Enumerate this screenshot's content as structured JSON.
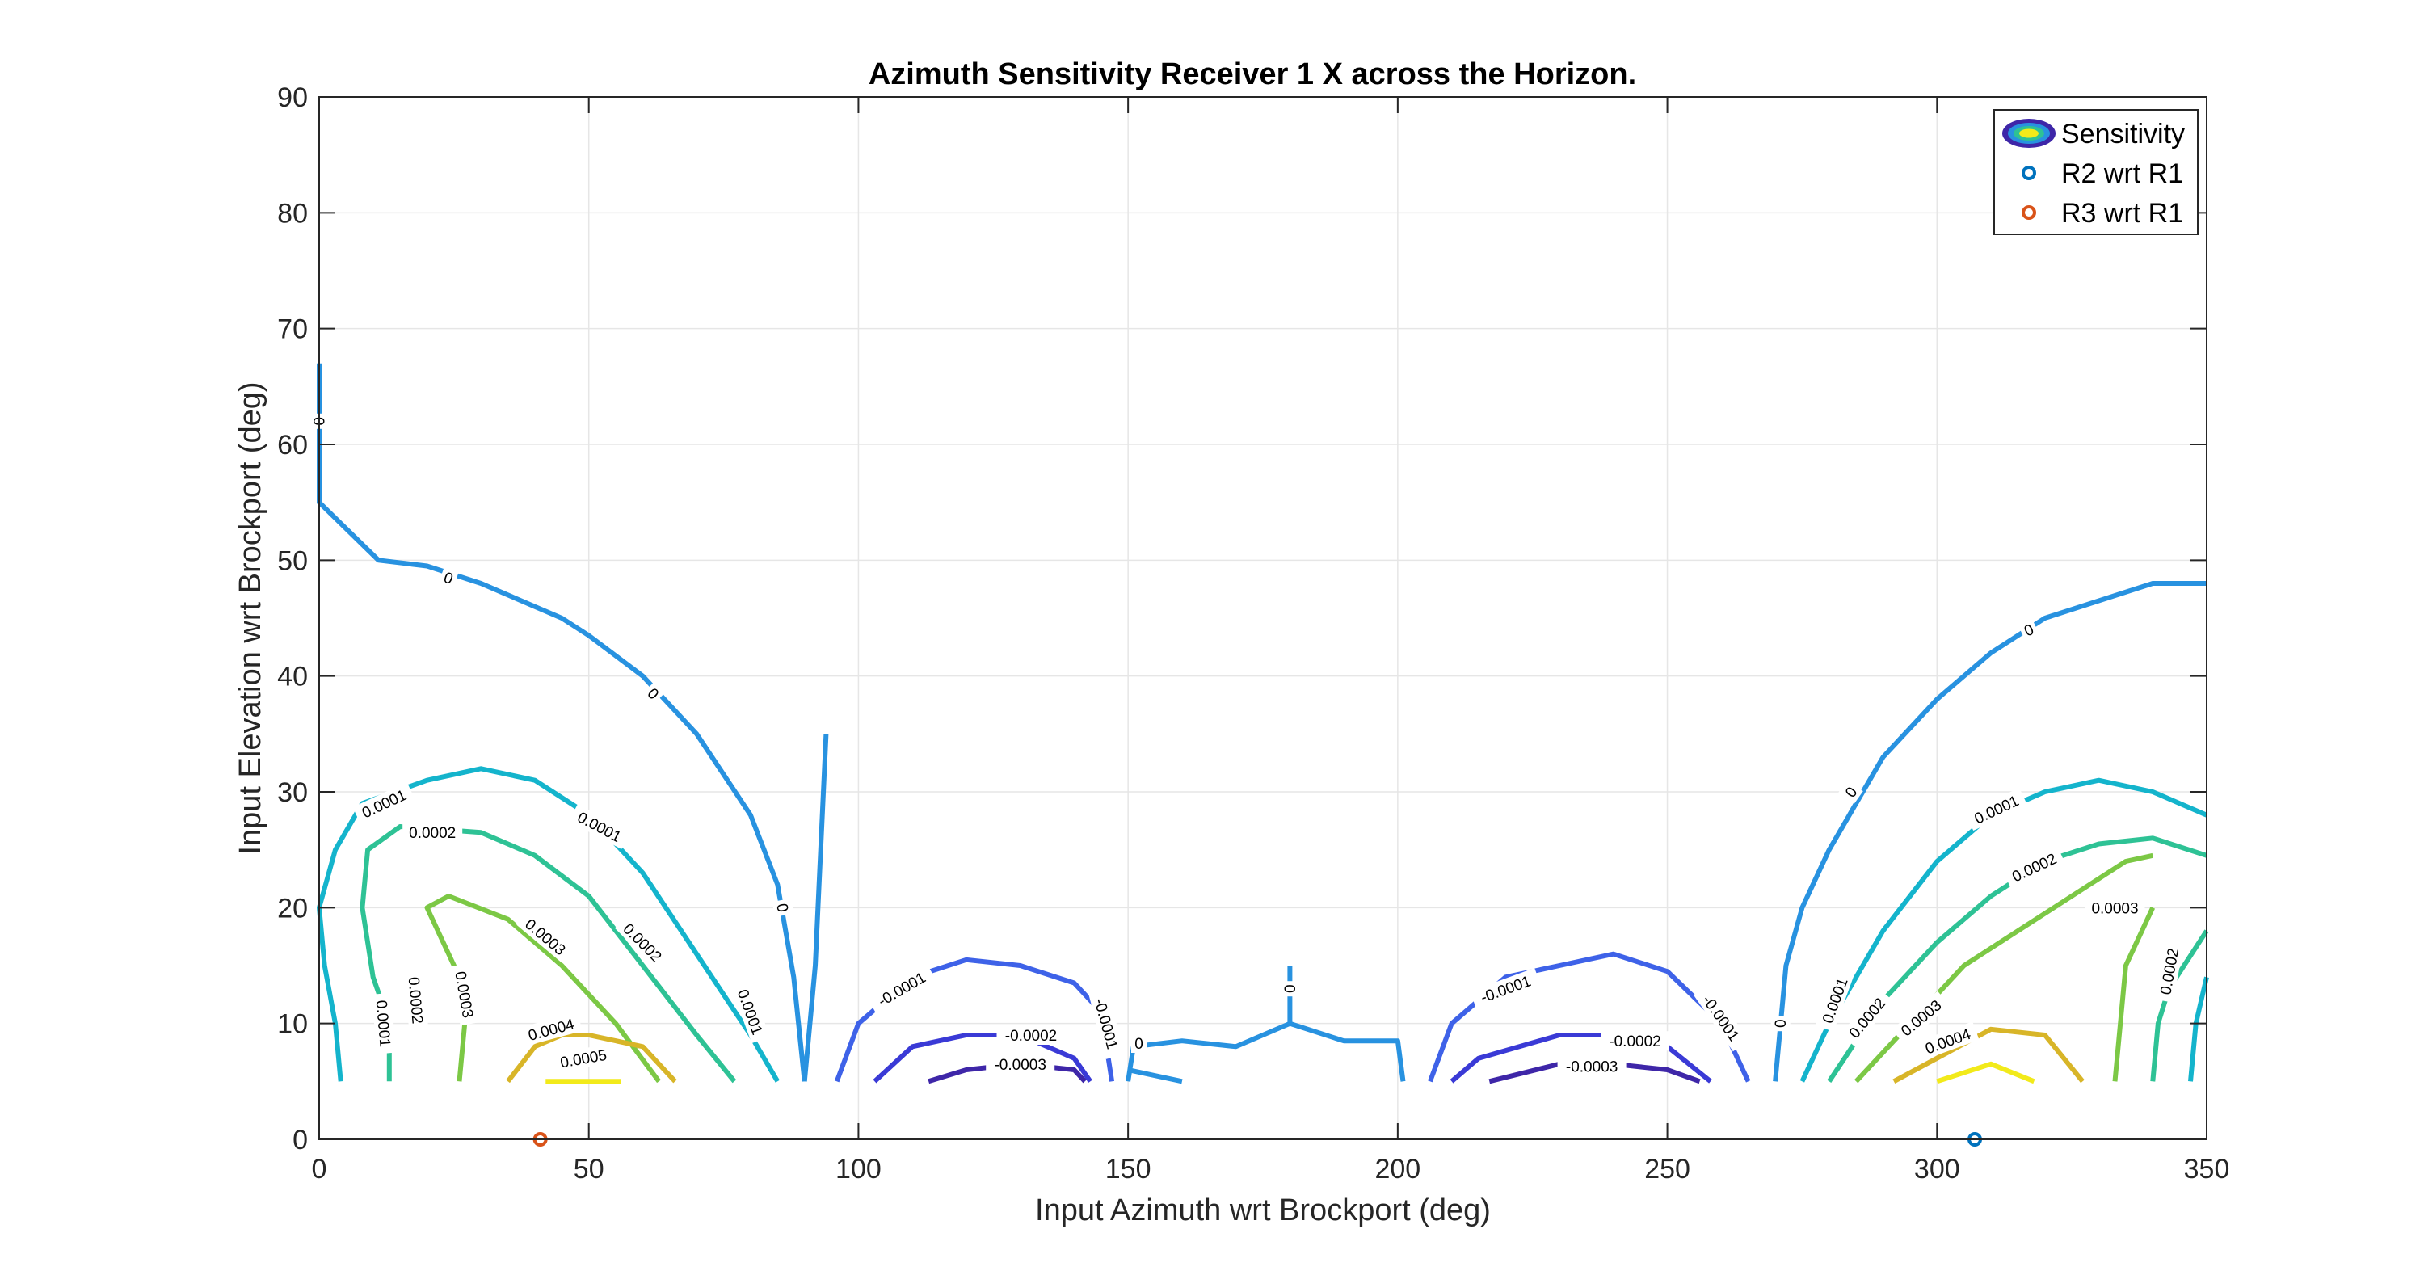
{
  "chart_data": {
    "type": "contour",
    "title": "Azimuth Sensitivity Receiver 1 X across the Horizon.",
    "xlabel": "Input Azimuth wrt Brockport (deg)",
    "ylabel": "Input Elevation wrt Brockport (deg)",
    "xlim": [
      0,
      350
    ],
    "ylim": [
      0,
      90
    ],
    "xticks": [
      0,
      50,
      100,
      150,
      200,
      250,
      300,
      350
    ],
    "yticks": [
      0,
      10,
      20,
      30,
      40,
      50,
      60,
      70,
      80,
      90
    ],
    "grid": true,
    "legend": {
      "position": "top-right",
      "entries": [
        "Sensitivity",
        "R2 wrt R1",
        "R3 wrt R1"
      ]
    },
    "colors": {
      "n0003": "#3e26a8",
      "n0002": "#3a3ad6",
      "n0001": "#3e62e8",
      "z0": "#2892e0",
      "p0001": "#14b4cc",
      "p0002": "#2ec295",
      "p0003": "#7cc845",
      "p0004": "#d8b528",
      "p0005": "#f2ea1a",
      "r2": "#0072bd",
      "r3": "#d95319"
    },
    "contours": [
      {
        "level": 0,
        "color_key": "z0",
        "points": [
          [
            0,
            67
          ],
          [
            0,
            55
          ],
          [
            11,
            50
          ],
          [
            20,
            49.5
          ],
          [
            30,
            48
          ],
          [
            40,
            46
          ],
          [
            45,
            45
          ],
          [
            50,
            43.5
          ],
          [
            60,
            40
          ],
          [
            70,
            35
          ],
          [
            80,
            28
          ],
          [
            85,
            22
          ],
          [
            88,
            14
          ],
          [
            90,
            5
          ]
        ]
      },
      {
        "level": 0.0001,
        "color_key": "p0001",
        "points": [
          [
            4,
            5
          ],
          [
            3,
            10
          ],
          [
            1,
            15
          ],
          [
            0,
            20
          ],
          [
            3,
            25
          ],
          [
            8,
            29
          ],
          [
            20,
            31
          ],
          [
            30,
            32
          ],
          [
            40,
            31
          ],
          [
            50,
            28
          ],
          [
            60,
            23
          ],
          [
            70,
            16
          ],
          [
            80,
            9
          ],
          [
            85,
            5
          ]
        ]
      },
      {
        "level": 0.0002,
        "color_key": "p0002",
        "points": [
          [
            13,
            5
          ],
          [
            13,
            10
          ],
          [
            10,
            14
          ],
          [
            8,
            20
          ],
          [
            9,
            25
          ],
          [
            15,
            27
          ],
          [
            30,
            26.5
          ],
          [
            40,
            24.5
          ],
          [
            50,
            21
          ],
          [
            60,
            15
          ],
          [
            70,
            9
          ],
          [
            77,
            5
          ]
        ]
      },
      {
        "level": 0.0003,
        "color_key": "p0003",
        "points": [
          [
            26,
            5
          ],
          [
            27,
            10
          ],
          [
            25,
            15
          ],
          [
            20,
            20
          ],
          [
            24,
            21
          ],
          [
            35,
            19
          ],
          [
            45,
            15
          ],
          [
            55,
            10
          ],
          [
            63,
            5
          ]
        ]
      },
      {
        "level": 0.0004,
        "color_key": "p0004",
        "points": [
          [
            35,
            5
          ],
          [
            40,
            8
          ],
          [
            45,
            9
          ],
          [
            50,
            9
          ],
          [
            60,
            8
          ],
          [
            66,
            5
          ]
        ]
      },
      {
        "level": 0.0005,
        "color_key": "p0005",
        "points": [
          [
            42,
            5
          ],
          [
            50,
            5
          ],
          [
            56,
            5
          ]
        ]
      },
      {
        "level": 0,
        "color_key": "z0",
        "points": [
          [
            90,
            5
          ],
          [
            91,
            10
          ],
          [
            92,
            15
          ],
          [
            93,
            25
          ],
          [
            94,
            35
          ]
        ]
      },
      {
        "level": -0.0001,
        "color_key": "n0001",
        "points": [
          [
            96,
            5
          ],
          [
            100,
            10
          ],
          [
            110,
            14
          ],
          [
            120,
            15.5
          ],
          [
            130,
            15
          ],
          [
            140,
            13.5
          ],
          [
            145,
            11
          ],
          [
            147,
            5
          ]
        ]
      },
      {
        "level": -0.0002,
        "color_key": "n0002",
        "points": [
          [
            103,
            5
          ],
          [
            110,
            8
          ],
          [
            120,
            9
          ],
          [
            130,
            9
          ],
          [
            140,
            7
          ],
          [
            143,
            5
          ]
        ]
      },
      {
        "level": -0.0003,
        "color_key": "n0003",
        "points": [
          [
            113,
            5
          ],
          [
            120,
            6
          ],
          [
            130,
            6.5
          ],
          [
            140,
            6
          ],
          [
            142,
            5
          ]
        ]
      },
      {
        "level": 0,
        "color_key": "z0",
        "points": [
          [
            150,
            5
          ],
          [
            151,
            8
          ],
          [
            160,
            8.5
          ],
          [
            170,
            8
          ],
          [
            180,
            10
          ],
          [
            190,
            8.5
          ],
          [
            200,
            8.5
          ],
          [
            201,
            5
          ]
        ]
      },
      {
        "level": 0,
        "color_key": "z0",
        "points": [
          [
            180,
            10
          ],
          [
            180,
            15
          ]
        ]
      },
      {
        "level": 0,
        "color_key": "z0",
        "points": [
          [
            150,
            6
          ],
          [
            155,
            5.5
          ],
          [
            160,
            5
          ]
        ]
      },
      {
        "level": -0.0001,
        "color_key": "n0001",
        "points": [
          [
            206,
            5
          ],
          [
            210,
            10
          ],
          [
            220,
            14
          ],
          [
            230,
            15
          ],
          [
            240,
            16
          ],
          [
            250,
            14.5
          ],
          [
            260,
            10
          ],
          [
            265,
            5
          ]
        ]
      },
      {
        "level": -0.0002,
        "color_key": "n0002",
        "points": [
          [
            210,
            5
          ],
          [
            215,
            7
          ],
          [
            230,
            9
          ],
          [
            240,
            9
          ],
          [
            250,
            8
          ],
          [
            258,
            5
          ]
        ]
      },
      {
        "level": -0.0003,
        "color_key": "n0003",
        "points": [
          [
            217,
            5
          ],
          [
            230,
            6.5
          ],
          [
            240,
            6.5
          ],
          [
            250,
            6
          ],
          [
            256,
            5
          ]
        ]
      },
      {
        "level": 0,
        "color_key": "z0",
        "points": [
          [
            270,
            5
          ],
          [
            272,
            15
          ],
          [
            275,
            20
          ],
          [
            280,
            25
          ],
          [
            290,
            33
          ],
          [
            300,
            38
          ],
          [
            310,
            42
          ],
          [
            320,
            45
          ],
          [
            330,
            46.5
          ],
          [
            340,
            48
          ],
          [
            350,
            48
          ]
        ]
      },
      {
        "level": 0.0001,
        "color_key": "p0001",
        "points": [
          [
            275,
            5
          ],
          [
            280,
            10
          ],
          [
            290,
            18
          ],
          [
            300,
            24
          ],
          [
            310,
            28
          ],
          [
            320,
            30
          ],
          [
            330,
            31
          ],
          [
            340,
            30
          ],
          [
            350,
            28
          ]
        ]
      },
      {
        "level": 0.0002,
        "color_key": "p0002",
        "points": [
          [
            280,
            5
          ],
          [
            290,
            12
          ],
          [
            300,
            17
          ],
          [
            310,
            21
          ],
          [
            320,
            24
          ],
          [
            330,
            25.5
          ],
          [
            340,
            26
          ],
          [
            350,
            24.5
          ]
        ]
      },
      {
        "level": 0.0003,
        "color_key": "p0003",
        "points": [
          [
            285,
            5
          ],
          [
            295,
            10
          ],
          [
            305,
            15
          ],
          [
            315,
            18
          ],
          [
            325,
            21
          ],
          [
            335,
            24
          ],
          [
            340,
            24.5
          ]
        ]
      },
      {
        "level": 0.0004,
        "color_key": "p0004",
        "points": [
          [
            292,
            5
          ],
          [
            300,
            7
          ],
          [
            310,
            9.5
          ],
          [
            320,
            9
          ],
          [
            327,
            5
          ]
        ]
      },
      {
        "level": 0.0005,
        "color_key": "p0005",
        "points": [
          [
            300,
            5
          ],
          [
            310,
            6.5
          ],
          [
            318,
            5
          ]
        ]
      },
      {
        "level": 0.0003,
        "color_key": "p0003",
        "points": [
          [
            333,
            5
          ],
          [
            335,
            15
          ],
          [
            340,
            20
          ]
        ]
      },
      {
        "level": 0.0002,
        "color_key": "p0002",
        "points": [
          [
            340,
            5
          ],
          [
            341,
            10
          ],
          [
            343,
            13
          ],
          [
            350,
            18
          ]
        ]
      },
      {
        "level": 0.0001,
        "color_key": "p0001",
        "points": [
          [
            347,
            5
          ],
          [
            348,
            10
          ],
          [
            349,
            12
          ],
          [
            350,
            14
          ]
        ]
      }
    ],
    "contour_labels": [
      {
        "text": "0",
        "x": 0,
        "y": 62,
        "rot": 90,
        "color_key": "z0"
      },
      {
        "text": "0",
        "x": 24,
        "y": 48.5,
        "rot": 20,
        "color_key": "z0"
      },
      {
        "text": "0",
        "x": 62,
        "y": 38.5,
        "rot": 45,
        "color_key": "z0"
      },
      {
        "text": "0",
        "x": 86,
        "y": 20,
        "rot": 80,
        "color_key": "z0"
      },
      {
        "text": "0.0001",
        "x": 12,
        "y": 29,
        "rot": -25,
        "color_key": "p0001"
      },
      {
        "text": "0.0001",
        "x": 52,
        "y": 27,
        "rot": 28,
        "color_key": "p0001"
      },
      {
        "text": "0.0001",
        "x": 80,
        "y": 11,
        "rot": 70,
        "color_key": "p0001"
      },
      {
        "text": "0.0001",
        "x": 12,
        "y": 10,
        "rot": 85,
        "color_key": "p0001"
      },
      {
        "text": "0.0002",
        "x": 21,
        "y": 26.5,
        "rot": 0,
        "color_key": "p0002"
      },
      {
        "text": "0.0002",
        "x": 60,
        "y": 17,
        "rot": 45,
        "color_key": "p0002"
      },
      {
        "text": "0.0002",
        "x": 18,
        "y": 12,
        "rot": 85,
        "color_key": "p0002"
      },
      {
        "text": "0.0003",
        "x": 42,
        "y": 17.5,
        "rot": 40,
        "color_key": "p0003"
      },
      {
        "text": "0.0003",
        "x": 27,
        "y": 12.5,
        "rot": 80,
        "color_key": "p0003"
      },
      {
        "text": "0.0004",
        "x": 43,
        "y": 9.5,
        "rot": -15,
        "color_key": "p0004"
      },
      {
        "text": "0.0005",
        "x": 49,
        "y": 7,
        "rot": -10,
        "color_key": "p0005"
      },
      {
        "text": "-0.0001",
        "x": 108,
        "y": 13,
        "rot": -30,
        "color_key": "n0001"
      },
      {
        "text": "-0.0002",
        "x": 132,
        "y": 9,
        "rot": 0,
        "color_key": "n0002"
      },
      {
        "text": "-0.0003",
        "x": 130,
        "y": 6.5,
        "rot": 0,
        "color_key": "n0003"
      },
      {
        "text": "-0.0001",
        "x": 146,
        "y": 10,
        "rot": 75,
        "color_key": "n0001"
      },
      {
        "text": "0",
        "x": 152,
        "y": 8.3,
        "rot": 0,
        "color_key": "z0"
      },
      {
        "text": "0",
        "x": 180,
        "y": 13,
        "rot": 90,
        "color_key": "z0"
      },
      {
        "text": "-0.0001",
        "x": 220,
        "y": 13,
        "rot": -20,
        "color_key": "n0001"
      },
      {
        "text": "-0.0002",
        "x": 244,
        "y": 8.5,
        "rot": 0,
        "color_key": "n0002"
      },
      {
        "text": "-0.0003",
        "x": 236,
        "y": 6.3,
        "rot": 0,
        "color_key": "n0003"
      },
      {
        "text": "-0.0001",
        "x": 260,
        "y": 10.5,
        "rot": 55,
        "color_key": "n0001"
      },
      {
        "text": "0",
        "x": 271,
        "y": 10,
        "rot": 90,
        "color_key": "z0"
      },
      {
        "text": "0",
        "x": 284,
        "y": 30,
        "rot": -55,
        "color_key": "z0"
      },
      {
        "text": "0",
        "x": 317,
        "y": 44,
        "rot": -25,
        "color_key": "z0"
      },
      {
        "text": "0.0001",
        "x": 281,
        "y": 12,
        "rot": -70,
        "color_key": "p0001"
      },
      {
        "text": "0.0001",
        "x": 311,
        "y": 28.5,
        "rot": -25,
        "color_key": "p0001"
      },
      {
        "text": "0.0002",
        "x": 287,
        "y": 10.5,
        "rot": -50,
        "color_key": "p0002"
      },
      {
        "text": "0.0002",
        "x": 318,
        "y": 23.5,
        "rot": -25,
        "color_key": "p0002"
      },
      {
        "text": "0.0002",
        "x": 343,
        "y": 14.5,
        "rot": -80,
        "color_key": "p0002"
      },
      {
        "text": "0.0003",
        "x": 297,
        "y": 10.5,
        "rot": -40,
        "color_key": "p0003"
      },
      {
        "text": "0.0003",
        "x": 333,
        "y": 20,
        "rot": 0,
        "color_key": "p0003"
      },
      {
        "text": "0.0004",
        "x": 302,
        "y": 8.5,
        "rot": -20,
        "color_key": "p0004"
      }
    ],
    "markers": [
      {
        "name": "R3 wrt R1",
        "x": 41,
        "y": 0,
        "color_key": "r3"
      },
      {
        "name": "R2 wrt R1",
        "x": 307,
        "y": 0,
        "color_key": "r2"
      }
    ]
  }
}
